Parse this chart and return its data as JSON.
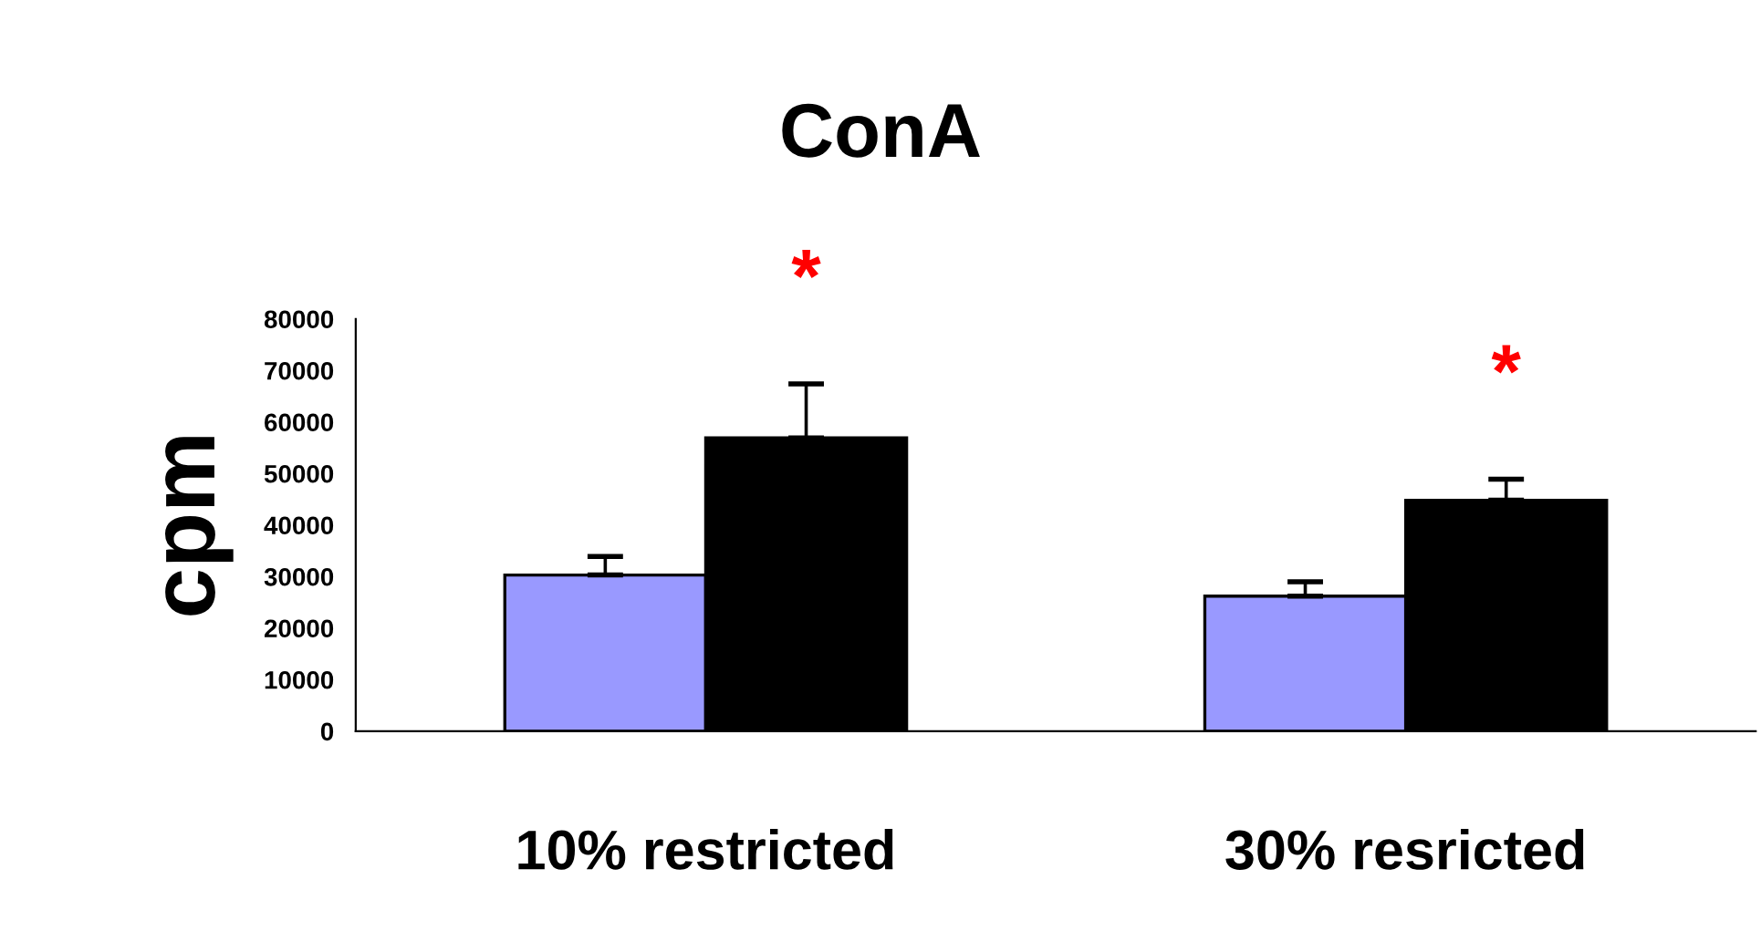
{
  "chart_data": {
    "type": "bar",
    "title": "ConA",
    "ylabel": "cpm",
    "categories": [
      "10% restricted",
      "30% resricted"
    ],
    "series": [
      {
        "color": "#9999ff",
        "values": [
          30300,
          26200
        ],
        "errors": [
          [
            30300,
            33900
          ],
          [
            26200,
            29000
          ]
        ]
      },
      {
        "color": "#000000",
        "values": [
          56900,
          44800
        ],
        "errors": [
          [
            56900,
            67400
          ],
          [
            44800,
            48900
          ]
        ]
      }
    ],
    "ylim": [
      0,
      80000
    ],
    "yticks": [
      0,
      10000,
      20000,
      30000,
      40000,
      50000,
      60000,
      70000,
      80000
    ],
    "annotations": [
      "*",
      "*"
    ],
    "grid": false,
    "legend": false
  }
}
